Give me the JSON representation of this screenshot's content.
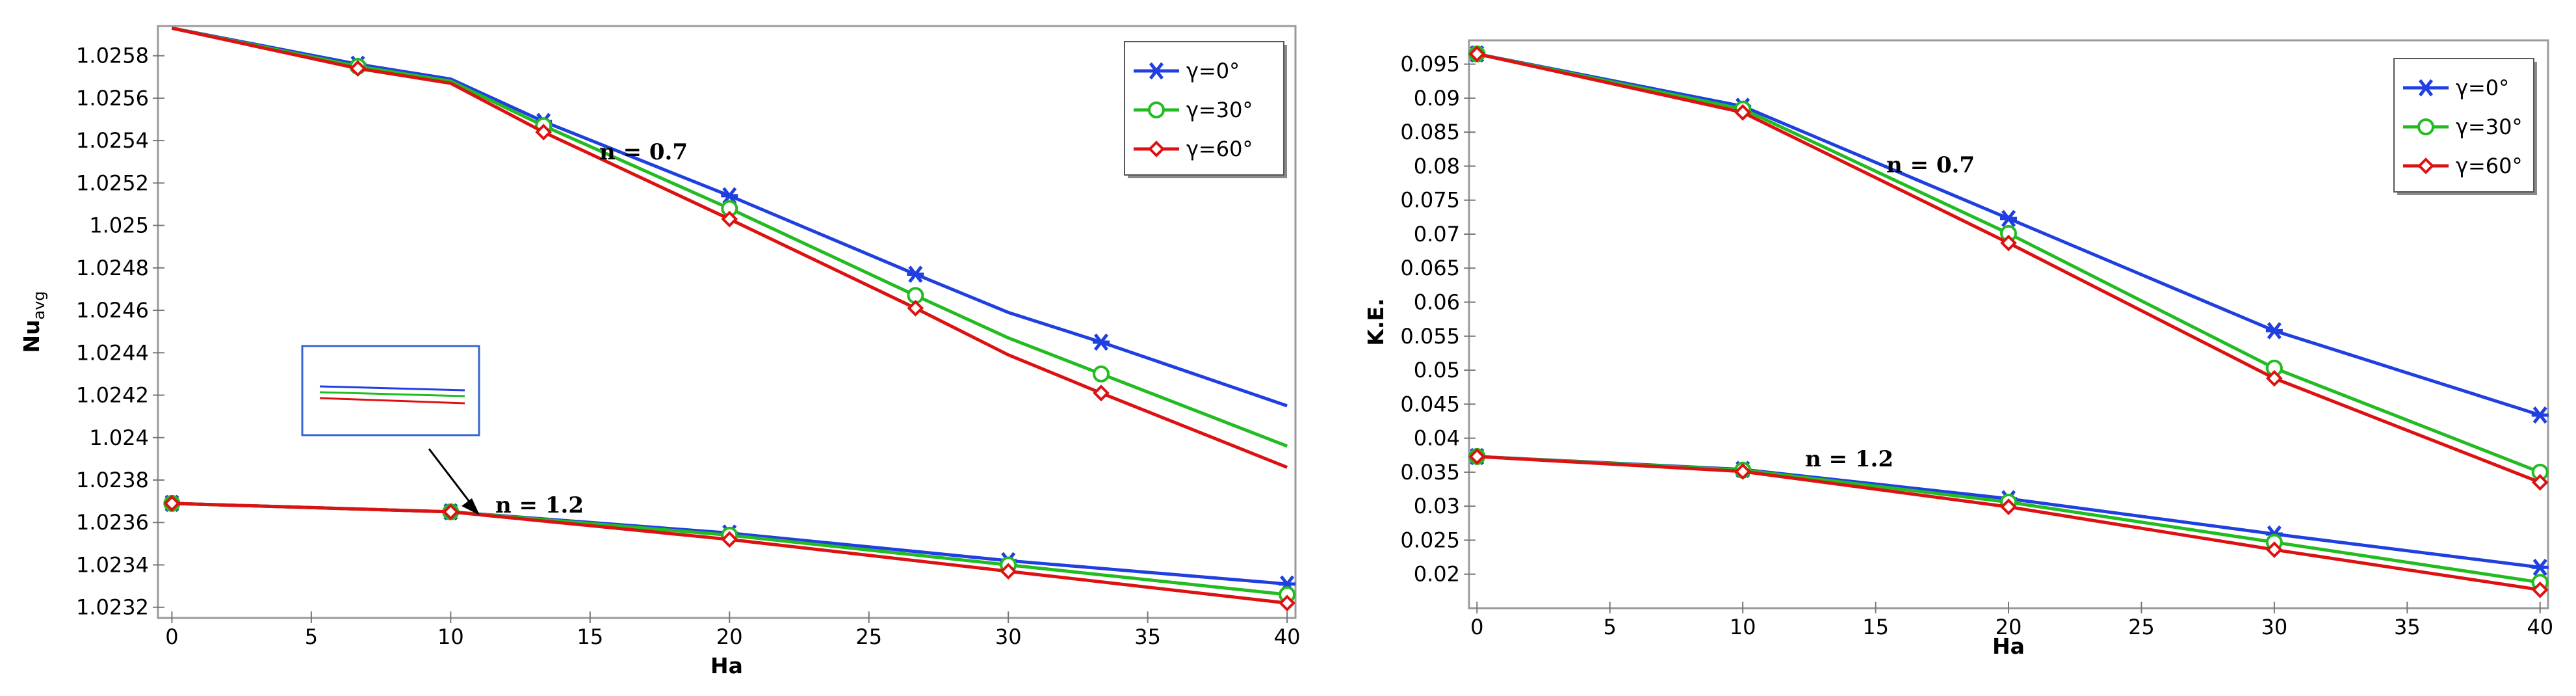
{
  "chart_data": [
    {
      "type": "line",
      "title": "",
      "xlabel": "Ha",
      "ylabel": "Nu",
      "ylabel_sub": "avg",
      "xlim": [
        -0.5,
        40.3
      ],
      "ylim": [
        1.02315,
        1.02594
      ],
      "xticks": [
        0,
        5,
        10,
        15,
        20,
        25,
        30,
        35,
        40
      ],
      "yticks": [
        "1.0232",
        "1.0234",
        "1.0236",
        "1.0238",
        "1.024",
        "1.0242",
        "1.0244",
        "1.0246",
        "1.0248",
        "1.025",
        "1.0252",
        "1.0254",
        "1.0256",
        "1.0258"
      ],
      "legend": [
        "γ=0°",
        "γ=30°",
        "γ=60°"
      ],
      "annotations": [
        "n = 0.7",
        "n = 1.2"
      ],
      "series": [
        {
          "name": "γ=0°",
          "group": "n = 0.7",
          "color": "#1f3fe0",
          "marker": "star",
          "x": [
            0,
            6.67,
            10,
            13.33,
            20,
            26.67,
            30,
            33.33,
            40
          ],
          "y": [
            1.02593,
            1.02576,
            1.02569,
            1.02549,
            1.02514,
            1.02477,
            1.02459,
            1.02445,
            1.02415
          ],
          "marker_x": [
            6.67,
            13.33,
            20,
            26.67,
            33.33
          ]
        },
        {
          "name": "γ=30°",
          "group": "n = 0.7",
          "color": "#22bb22",
          "marker": "circle",
          "x": [
            0,
            6.67,
            10,
            13.33,
            20,
            26.67,
            30,
            33.33,
            40
          ],
          "y": [
            1.02593,
            1.02575,
            1.02568,
            1.02547,
            1.02508,
            1.02467,
            1.02447,
            1.0243,
            1.02396
          ],
          "marker_x": [
            6.67,
            13.33,
            20,
            26.67,
            33.33
          ]
        },
        {
          "name": "γ=60°",
          "group": "n = 0.7",
          "color": "#dd1111",
          "marker": "diamond",
          "x": [
            0,
            6.67,
            10,
            13.33,
            20,
            26.67,
            30,
            33.33,
            40
          ],
          "y": [
            1.02593,
            1.02574,
            1.02567,
            1.02544,
            1.02503,
            1.02461,
            1.02439,
            1.02421,
            1.02386
          ],
          "marker_x": [
            6.67,
            13.33,
            20,
            26.67,
            33.33
          ]
        },
        {
          "name": "γ=0°",
          "group": "n = 1.2",
          "color": "#1f3fe0",
          "marker": "star",
          "x": [
            0,
            10,
            20,
            30,
            40
          ],
          "y": [
            1.02369,
            1.02365,
            1.02355,
            1.02342,
            1.02331
          ],
          "marker_x": [
            0,
            10,
            20,
            30,
            40
          ]
        },
        {
          "name": "γ=30°",
          "group": "n = 1.2",
          "color": "#22bb22",
          "marker": "circle",
          "x": [
            0,
            10,
            20,
            30,
            40
          ],
          "y": [
            1.02369,
            1.02365,
            1.02354,
            1.0234,
            1.02326
          ],
          "marker_x": [
            0,
            10,
            20,
            30,
            40
          ]
        },
        {
          "name": "γ=60°",
          "group": "n = 1.2",
          "color": "#dd1111",
          "marker": "diamond",
          "x": [
            0,
            10,
            20,
            30,
            40
          ],
          "y": [
            1.02369,
            1.02365,
            1.02352,
            1.02337,
            1.02322
          ],
          "marker_x": [
            0,
            10,
            20,
            30,
            40
          ]
        }
      ]
    },
    {
      "type": "line",
      "title": "",
      "xlabel": "Ha",
      "ylabel": "K.E.",
      "xlim": [
        -0.3,
        40.3
      ],
      "ylim": [
        0.015,
        0.0985
      ],
      "xticks": [
        0,
        5,
        10,
        15,
        20,
        25,
        30,
        35,
        40
      ],
      "yticks": [
        "0.02",
        "0.025",
        "0.03",
        "0.035",
        "0.04",
        "0.045",
        "0.05",
        "0.055",
        "0.06",
        "0.065",
        "0.07",
        "0.075",
        "0.08",
        "0.085",
        "0.09",
        "0.095"
      ],
      "legend": [
        "γ=0°",
        "γ=30°",
        "γ=60°"
      ],
      "annotations": [
        "n = 0.7",
        "n = 1.2"
      ],
      "series": [
        {
          "name": "γ=0°",
          "group": "n = 0.7",
          "color": "#1f3fe0",
          "marker": "star",
          "x": [
            0,
            10,
            20,
            30,
            40
          ],
          "y": [
            0.0965,
            0.0888,
            0.0723,
            0.0558,
            0.0434
          ],
          "marker_x": [
            0,
            10,
            20,
            30,
            40
          ]
        },
        {
          "name": "γ=30°",
          "group": "n = 0.7",
          "color": "#22bb22",
          "marker": "circle",
          "x": [
            0,
            10,
            20,
            30,
            40
          ],
          "y": [
            0.0965,
            0.0884,
            0.0701,
            0.0503,
            0.035
          ],
          "marker_x": [
            0,
            10,
            20,
            30,
            40
          ]
        },
        {
          "name": "γ=60°",
          "group": "n = 0.7",
          "color": "#dd1111",
          "marker": "diamond",
          "x": [
            0,
            10,
            20,
            30,
            40
          ],
          "y": [
            0.0965,
            0.0879,
            0.0687,
            0.0488,
            0.0335
          ],
          "marker_x": [
            0,
            10,
            20,
            30,
            40
          ]
        },
        {
          "name": "γ=0°",
          "group": "n = 1.2",
          "color": "#1f3fe0",
          "marker": "star",
          "x": [
            0,
            10,
            20,
            30,
            40
          ],
          "y": [
            0.0373,
            0.0354,
            0.0311,
            0.0259,
            0.021
          ],
          "marker_x": [
            0,
            10,
            20,
            30,
            40
          ]
        },
        {
          "name": "γ=30°",
          "group": "n = 1.2",
          "color": "#22bb22",
          "marker": "circle",
          "x": [
            0,
            10,
            20,
            30,
            40
          ],
          "y": [
            0.0373,
            0.0353,
            0.0306,
            0.0247,
            0.0188
          ],
          "marker_x": [
            0,
            10,
            20,
            30,
            40
          ]
        },
        {
          "name": "γ=60°",
          "group": "n = 1.2",
          "color": "#dd1111",
          "marker": "diamond",
          "x": [
            0,
            10,
            20,
            30,
            40
          ],
          "y": [
            0.0373,
            0.0351,
            0.0299,
            0.0236,
            0.0177
          ],
          "marker_x": [
            0,
            10,
            20,
            30,
            40
          ]
        }
      ]
    }
  ]
}
